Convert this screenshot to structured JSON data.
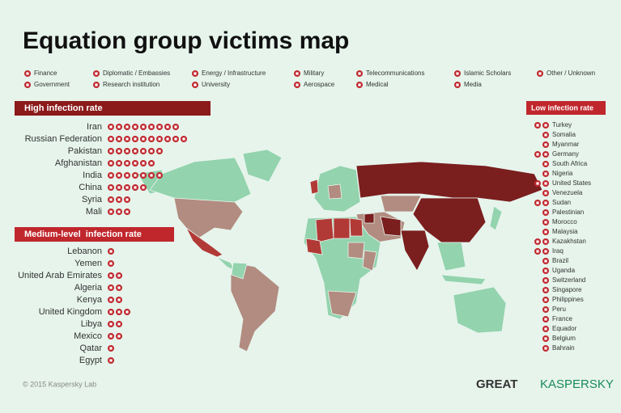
{
  "header": {
    "title": "Equation group victims map"
  },
  "legend": {
    "row1": [
      "Finance",
      "Diplomatic / Embassies",
      "Energy / Infrastructure",
      "Military",
      "Telecommunications",
      "Islamic Scholars",
      "Other / Unknown"
    ],
    "row2": [
      "Government",
      "Research institution",
      "University",
      "Aerospace",
      "Medical",
      "Media"
    ]
  },
  "high": {
    "title": "High infection rate",
    "countries": [
      "Iran",
      "Russian Federation",
      "Pakistan",
      "Afghanistan",
      "India",
      "China",
      "Syria",
      "Mali"
    ]
  },
  "medium": {
    "title": "Medium-level  infection rate",
    "countries": [
      "Lebanon",
      "Yemen",
      "United Arab Emirates",
      "Algeria",
      "Kenya",
      "United Kingdom",
      "Libya",
      "Mexico",
      "Qatar",
      "Egypt"
    ]
  },
  "low": {
    "title": "Low infection rate",
    "countries": [
      "Turkey",
      "Somalia",
      "Myanmar",
      "Germany",
      "South Africa",
      "Nigeria",
      "United States",
      "Venezuela",
      "Sudan",
      "Palestinian",
      "Morocco",
      "Malaysia",
      "Kazakhstan",
      "Iraq",
      "Brazil",
      "Uganda",
      "Switzerland",
      "Singapore",
      "Philippines",
      "Peru",
      "France",
      "Equador",
      "Belgium",
      "Bahrain"
    ]
  },
  "footer": {
    "copyright": "© 2015 Kaspersky Lab",
    "logo_great": "GREAT",
    "logo_kaspersky": "KASPERSKY"
  }
}
